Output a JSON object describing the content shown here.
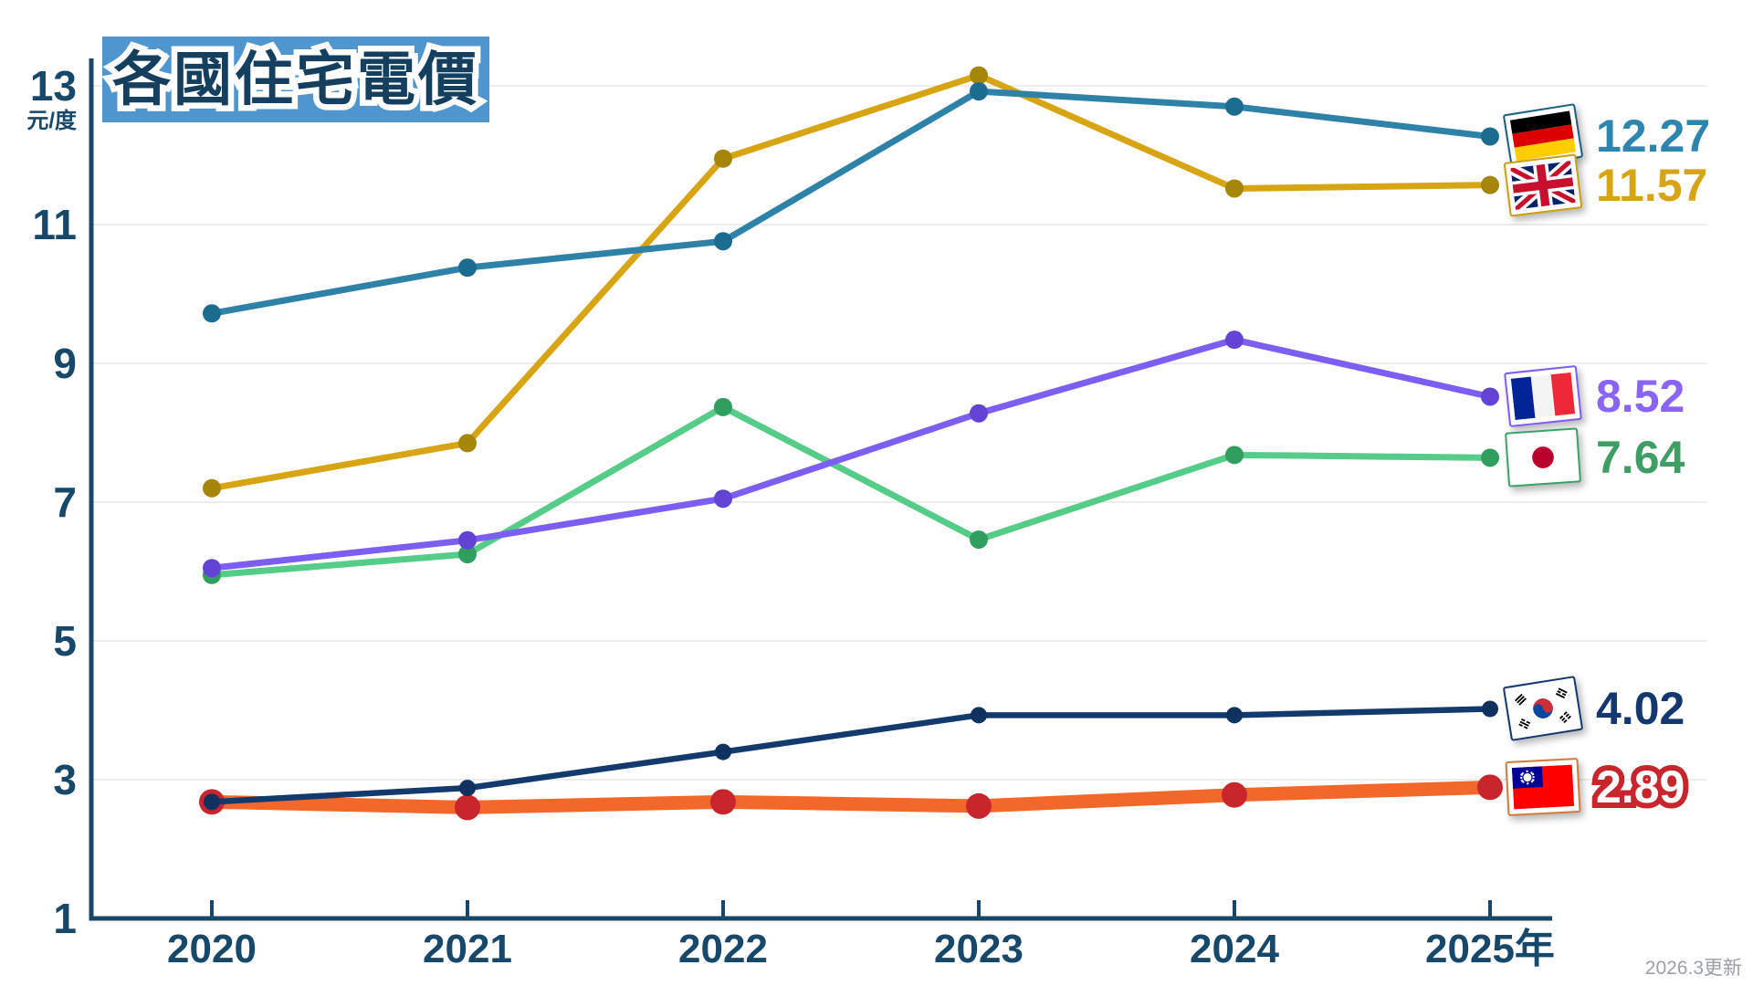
{
  "title": "各國住宅電價",
  "footnote": "2026.3更新",
  "chart_data": {
    "type": "line",
    "title": "各國住宅電價",
    "ylabel_unit": "元/度",
    "xlabel": "",
    "categories": [
      "2020",
      "2021",
      "2022",
      "2023",
      "2024",
      "2025年"
    ],
    "y_ticks": [
      13,
      11,
      9,
      7,
      5,
      3,
      1
    ],
    "ylim": [
      1,
      13
    ],
    "grid": "horizontal-light",
    "legend_position": "right-of-line-end",
    "axis_color": "#17486a",
    "series": [
      {
        "id": "uk",
        "country": "United Kingdom",
        "flag_icon": "uk-flag-icon",
        "color": "#d7a514",
        "marker_color": "#a5850a",
        "label_color": "#d7a514",
        "line_width": 7,
        "marker_radius": 10,
        "values": [
          7.2,
          7.85,
          11.95,
          13.15,
          11.52,
          11.57
        ],
        "end_label": "11.57"
      },
      {
        "id": "germany",
        "country": "Germany",
        "flag_icon": "germany-flag-icon",
        "color": "#2e81a7",
        "marker_color": "#1c6c90",
        "label_color": "#2e86ae",
        "line_width": 7,
        "marker_radius": 10,
        "values": [
          9.72,
          10.38,
          10.76,
          12.92,
          12.7,
          12.27
        ],
        "end_label": "12.27"
      },
      {
        "id": "japan",
        "country": "Japan",
        "flag_icon": "japan-flag-icon",
        "color": "#55cc88",
        "marker_color": "#2f9e5e",
        "label_color": "#3f9e63",
        "line_width": 7,
        "marker_radius": 10,
        "values": [
          5.95,
          6.25,
          8.37,
          6.46,
          7.68,
          7.64
        ],
        "end_label": "7.64"
      },
      {
        "id": "france",
        "country": "France",
        "flag_icon": "france-flag-icon",
        "color": "#7d5ef2",
        "marker_color": "#6343d4",
        "label_color": "#8a63f7",
        "line_width": 7,
        "marker_radius": 10,
        "values": [
          6.05,
          6.45,
          7.05,
          8.28,
          9.34,
          8.52
        ],
        "end_label": "8.52"
      },
      {
        "id": "taiwan",
        "country": "Taiwan",
        "flag_icon": "taiwan-flag-icon",
        "color": "#f2682a",
        "marker_color": "#c8252c",
        "label_color": "#c8252c",
        "label_style": "outlined",
        "line_width": 15,
        "marker_radius": 14,
        "values": [
          2.68,
          2.6,
          2.68,
          2.62,
          2.78,
          2.89
        ],
        "end_label": "2.89"
      },
      {
        "id": "korea",
        "country": "South Korea",
        "flag_icon": "korea-flag-icon",
        "color": "#123a6d",
        "marker_color": "#0e3160",
        "label_color": "#14386e",
        "line_width": 6.5,
        "marker_radius": 9,
        "values": [
          2.68,
          2.88,
          3.4,
          3.93,
          3.93,
          4.02
        ],
        "end_label": "4.02"
      }
    ]
  }
}
